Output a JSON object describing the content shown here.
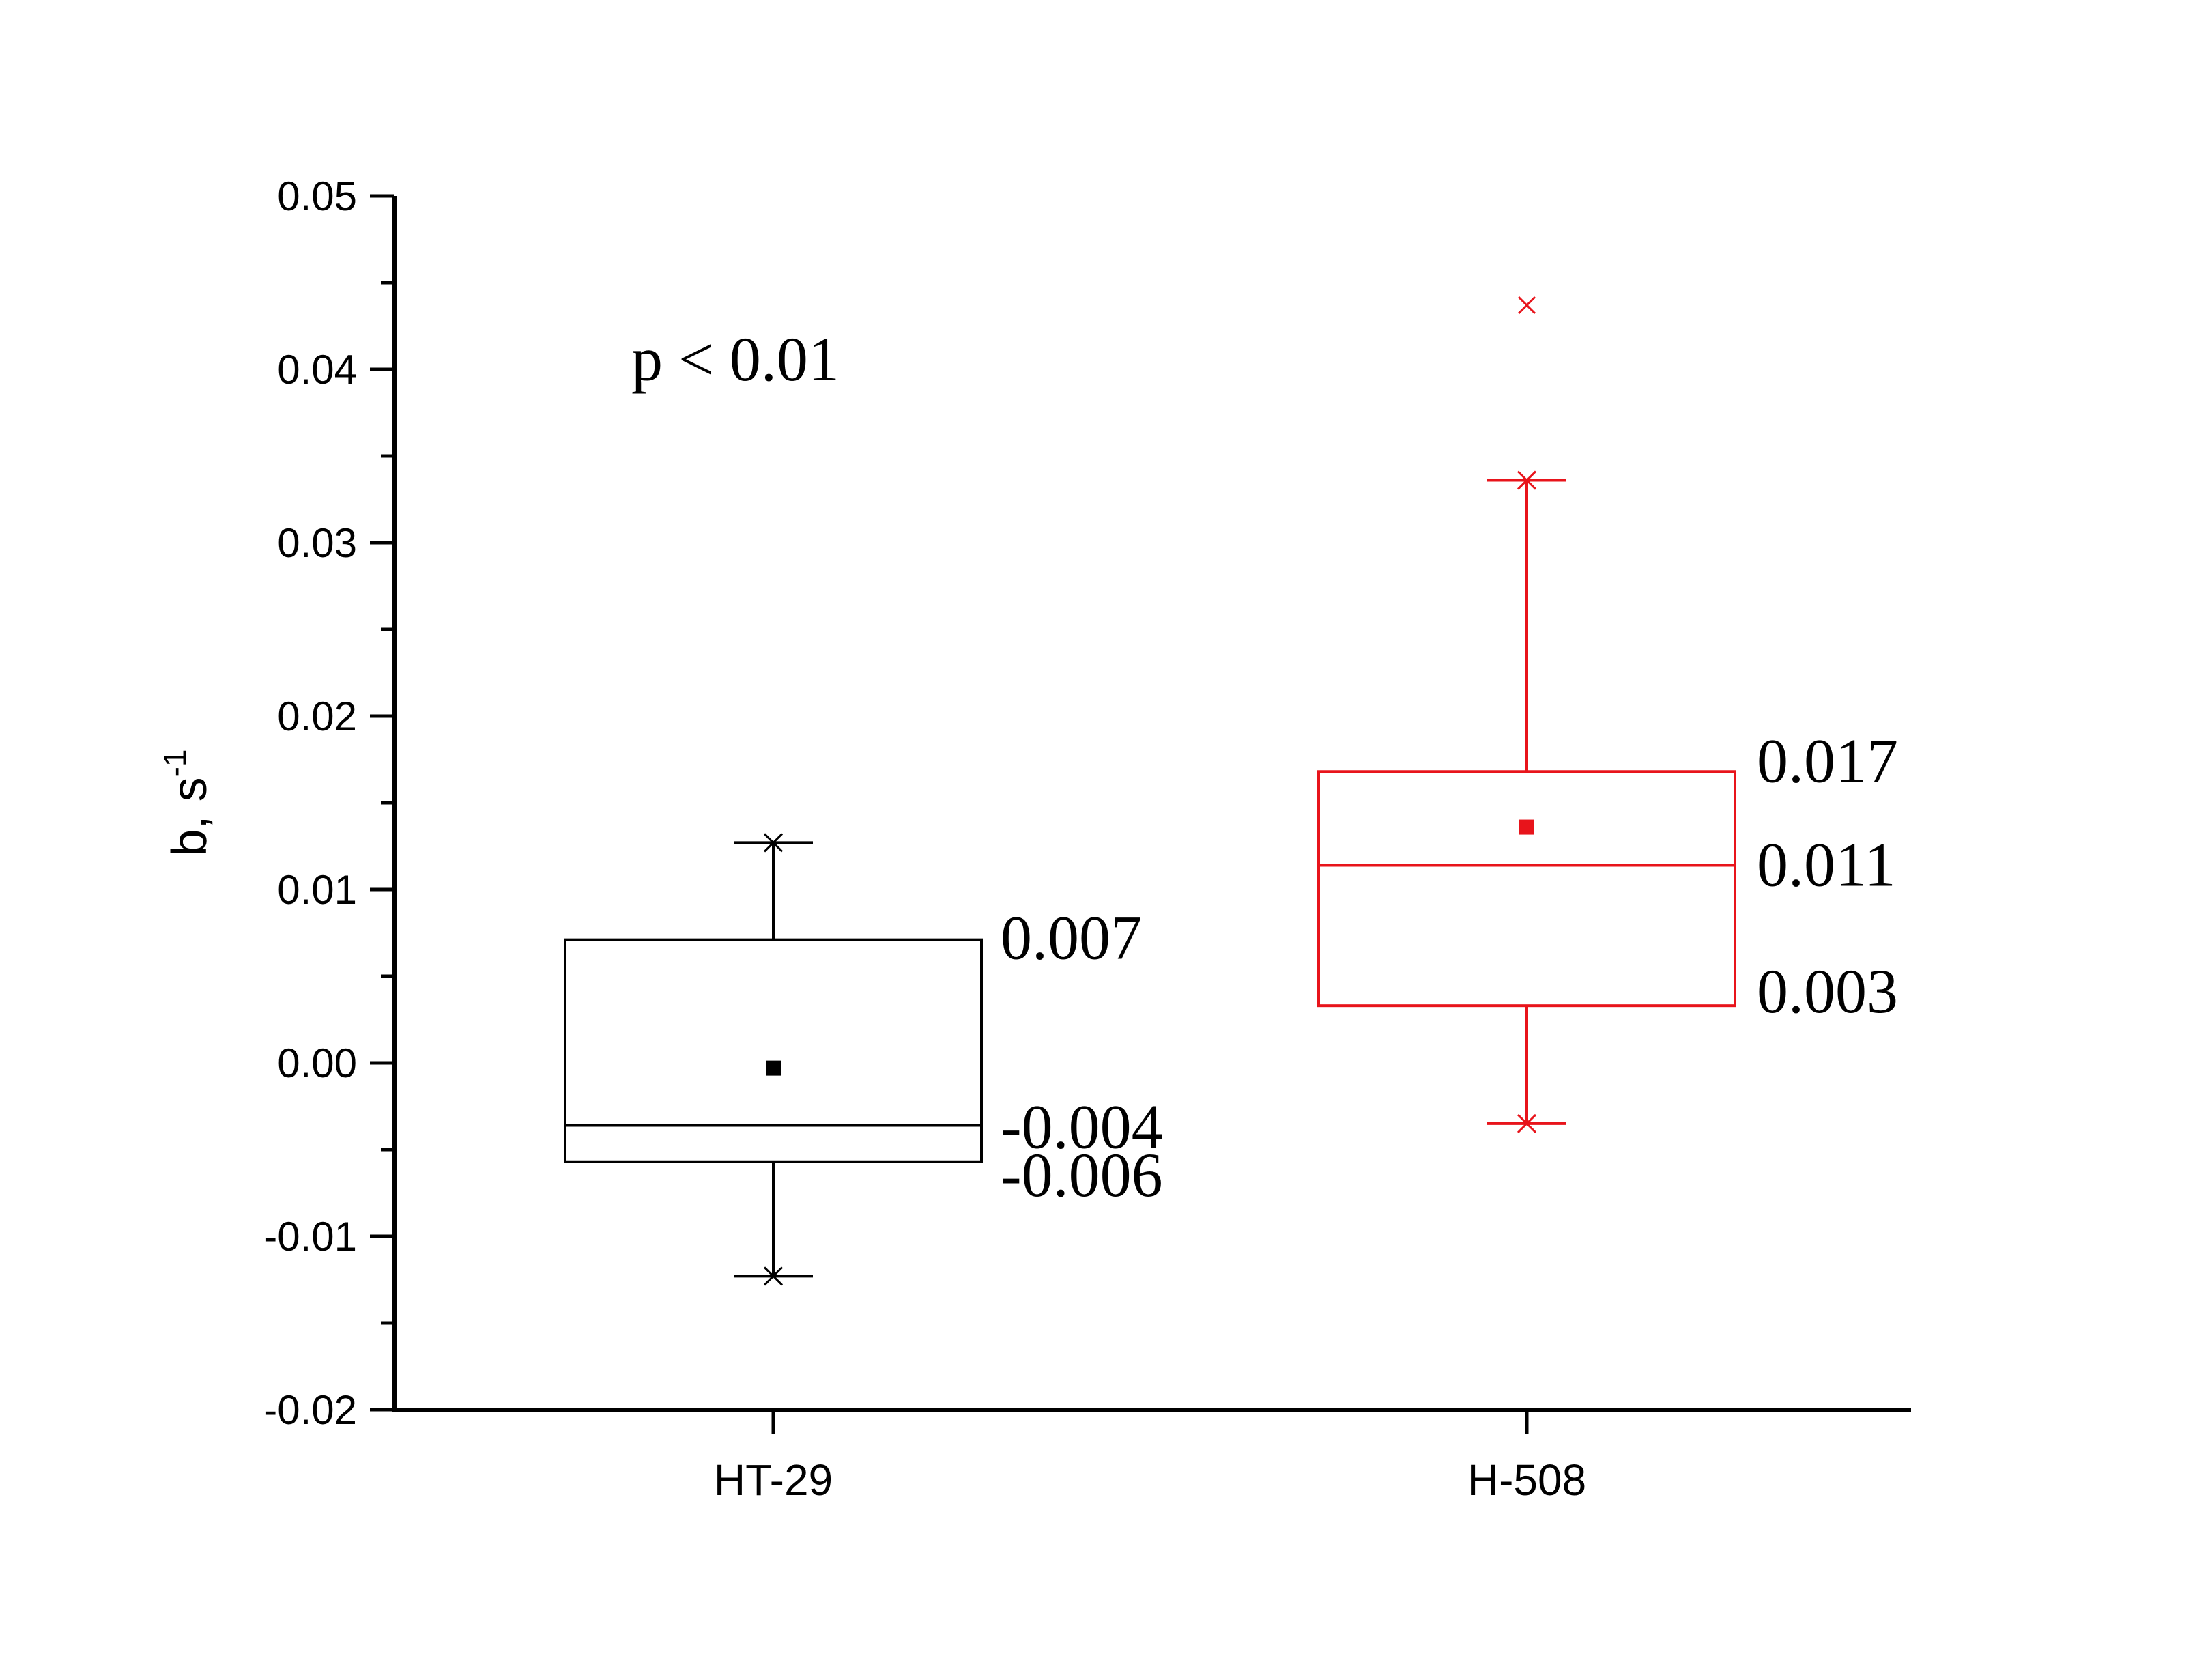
{
  "chart_data": {
    "type": "box",
    "ylabel": "b, s",
    "ylabel_sup": "-1",
    "ylim": [
      -0.02,
      0.05
    ],
    "yticks": [
      -0.02,
      -0.01,
      0.0,
      0.01,
      0.02,
      0.03,
      0.04,
      0.05
    ],
    "ytick_labels": [
      "-0.02",
      "-0.01",
      "0.00",
      "0.01",
      "0.02",
      "0.03",
      "0.04",
      "0.05"
    ],
    "minor_ticks": true,
    "annotation": "p < 0.01",
    "categories": [
      "HT-29",
      "H-508"
    ],
    "series": [
      {
        "category": "HT-29",
        "color": "#000000",
        "whisker_low": -0.0123,
        "q1": -0.0057,
        "median": -0.0036,
        "q3": 0.0071,
        "whisker_high": 0.0127,
        "mean": -0.0003,
        "outliers": [],
        "labels": {
          "q3": "0.007",
          "median": "-0.004",
          "q1": "-0.006"
        }
      },
      {
        "category": "H-508",
        "color": "#e8141b",
        "whisker_low": -0.0035,
        "q1": 0.0033,
        "median": 0.0114,
        "q3": 0.0168,
        "whisker_high": 0.0336,
        "mean": 0.0136,
        "outliers": [
          0.0437
        ],
        "labels": {
          "q3": "0.017",
          "median": "0.011",
          "q1": "0.003"
        }
      }
    ]
  }
}
